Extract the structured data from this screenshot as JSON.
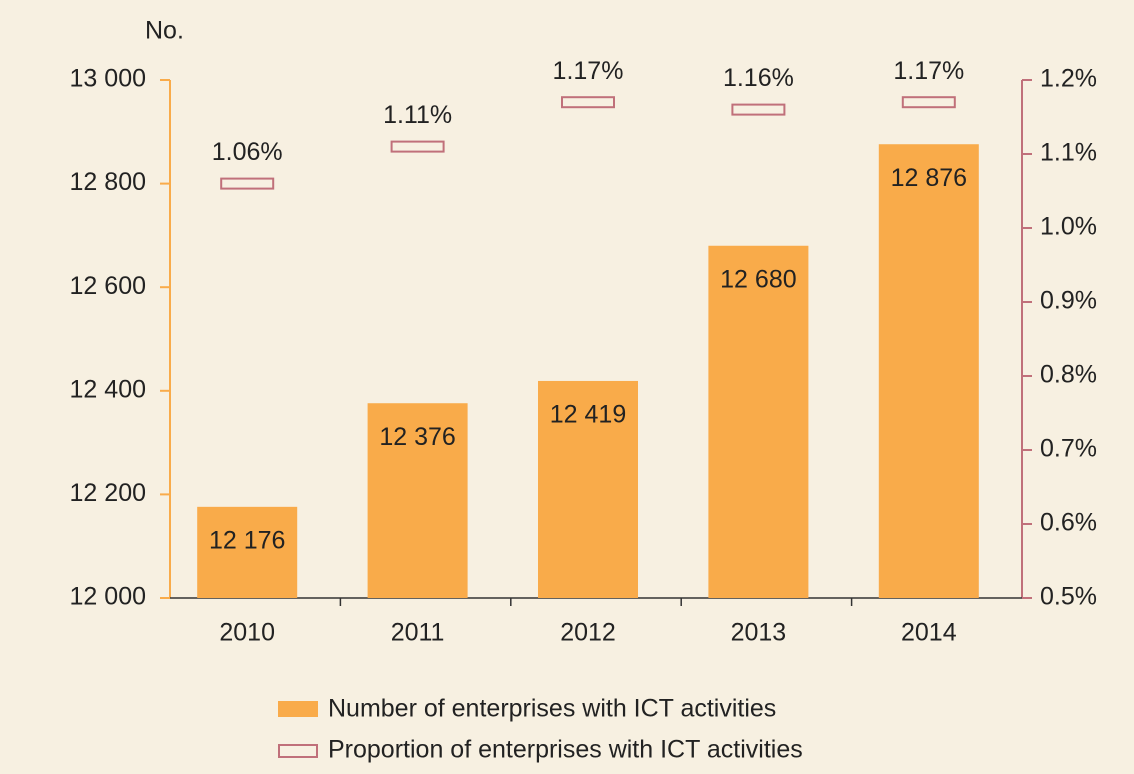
{
  "chart_data": {
    "type": "bar",
    "y_axis_label": "No.",
    "categories": [
      "2010",
      "2011",
      "2012",
      "2013",
      "2014"
    ],
    "series": [
      {
        "name": "Number of enterprises with ICT activities",
        "type": "bar",
        "color": "#f9ab4a",
        "values": [
          12176,
          12376,
          12419,
          12680,
          12876
        ],
        "value_labels": [
          "12 176",
          "12 376",
          "12 419",
          "12 680",
          "12 876"
        ]
      },
      {
        "name": "Proportion of enterprises with ICT activities",
        "type": "marker",
        "color": "#c0707a",
        "axis": "y2",
        "values": [
          1.06,
          1.11,
          1.17,
          1.16,
          1.17
        ],
        "value_labels": [
          "1.06%",
          "1.11%",
          "1.17%",
          "1.16%",
          "1.17%"
        ]
      }
    ],
    "ylim": [
      12000,
      13000
    ],
    "yticks": [
      {
        "value": 12000,
        "label": "12 000"
      },
      {
        "value": 12200,
        "label": "12 200"
      },
      {
        "value": 12400,
        "label": "12 400"
      },
      {
        "value": 12600,
        "label": "12 600"
      },
      {
        "value": 12800,
        "label": "12 800"
      },
      {
        "value": 13000,
        "label": "13 000"
      }
    ],
    "y2lim": [
      0.5,
      1.2
    ],
    "y2ticks": [
      {
        "value": 0.5,
        "label": "0.5%"
      },
      {
        "value": 0.6,
        "label": "0.6%"
      },
      {
        "value": 0.7,
        "label": "0.7%"
      },
      {
        "value": 0.8,
        "label": "0.8%"
      },
      {
        "value": 0.9,
        "label": "0.9%"
      },
      {
        "value": 1.0,
        "label": "1.0%"
      },
      {
        "value": 1.1,
        "label": "1.1%"
      },
      {
        "value": 1.2,
        "label": "1.2%"
      }
    ],
    "grid": false
  }
}
